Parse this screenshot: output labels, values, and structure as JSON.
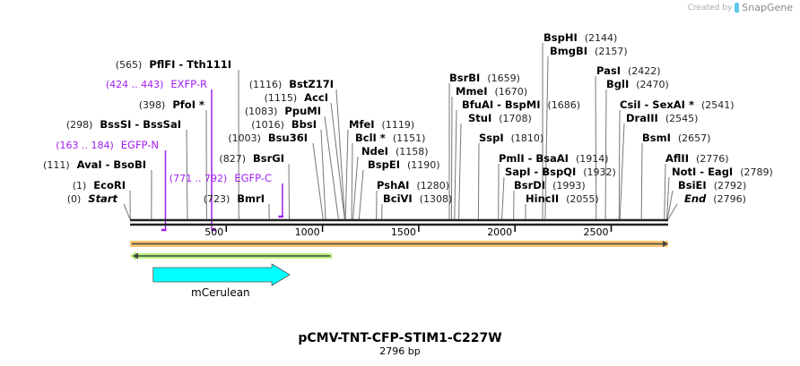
{
  "credit": {
    "prefix": "Created by",
    "brand": "SnapGene"
  },
  "sequence": {
    "name": "pCMV-TNT-CFP-STIM1-C227W",
    "length_label": "2796 bp",
    "length": 2796
  },
  "ruler": {
    "ticks": [
      "500",
      "1000",
      "1500",
      "2000",
      "2500"
    ]
  },
  "sites": [
    {
      "name": "Start",
      "pos": "(0)",
      "bp": 0,
      "italic": true
    },
    {
      "name": "EcoRI",
      "pos": "(1)",
      "bp": 1
    },
    {
      "name": "AvaI  - BsoBI",
      "pos": "(111)",
      "bp": 111
    },
    {
      "name": "BssSI  - BssSaI",
      "pos": "(298)",
      "bp": 298
    },
    {
      "name": "PfoI *",
      "pos": "(398)",
      "bp": 398
    },
    {
      "name": "PflFI  - Tth111I",
      "pos": "(565)",
      "bp": 565
    },
    {
      "name": "BmrI",
      "pos": "(723)",
      "bp": 723
    },
    {
      "name": "BsrGI",
      "pos": "(827)",
      "bp": 827
    },
    {
      "name": "Bsu36I",
      "pos": "(1003)",
      "bp": 1003
    },
    {
      "name": "BbsI",
      "pos": "(1016)",
      "bp": 1016
    },
    {
      "name": "PpuMI",
      "pos": "(1083)",
      "bp": 1083
    },
    {
      "name": "AccI",
      "pos": "(1115)",
      "bp": 1115
    },
    {
      "name": "BstZ17I",
      "pos": "(1116)",
      "bp": 1116
    },
    {
      "name": "MfeI",
      "pos": "(1119)",
      "bp": 1119
    },
    {
      "name": "BclI *",
      "pos": "(1151)",
      "bp": 1151
    },
    {
      "name": "NdeI",
      "pos": "(1158)",
      "bp": 1158
    },
    {
      "name": "BspEI",
      "pos": "(1190)",
      "bp": 1190
    },
    {
      "name": "PshAI",
      "pos": "(1280)",
      "bp": 1280
    },
    {
      "name": "BciVI",
      "pos": "(1308)",
      "bp": 1308
    },
    {
      "name": "BsrBI",
      "pos": "(1659)",
      "bp": 1659
    },
    {
      "name": "MmeI",
      "pos": "(1670)",
      "bp": 1670
    },
    {
      "name": "BfuAI  - BspMI",
      "pos": "(1686)",
      "bp": 1686
    },
    {
      "name": "StuI",
      "pos": "(1708)",
      "bp": 1708
    },
    {
      "name": "SspI",
      "pos": "(1810)",
      "bp": 1810
    },
    {
      "name": "PmlI  - BsaAI",
      "pos": "(1914)",
      "bp": 1914
    },
    {
      "name": "SapI  - BspQI",
      "pos": "(1932)",
      "bp": 1932
    },
    {
      "name": "BsrDI",
      "pos": "(1993)",
      "bp": 1993
    },
    {
      "name": "HincII",
      "pos": "(2055)",
      "bp": 2055
    },
    {
      "name": "BspHI",
      "pos": "(2144)",
      "bp": 2144
    },
    {
      "name": "BmgBI",
      "pos": "(2157)",
      "bp": 2157
    },
    {
      "name": "PasI",
      "pos": "(2422)",
      "bp": 2422
    },
    {
      "name": "BglI",
      "pos": "(2470)",
      "bp": 2470
    },
    {
      "name": "CsiI  - SexAI *",
      "pos": "(2541)",
      "bp": 2541
    },
    {
      "name": "DraIII",
      "pos": "(2545)",
      "bp": 2545
    },
    {
      "name": "BsmI",
      "pos": "(2657)",
      "bp": 2657
    },
    {
      "name": "AflII",
      "pos": "(2776)",
      "bp": 2776
    },
    {
      "name": "NotI  - EagI",
      "pos": "(2789)",
      "bp": 2789
    },
    {
      "name": "BsiEI",
      "pos": "(2792)",
      "bp": 2792
    },
    {
      "name": "End",
      "pos": "(2796)",
      "bp": 2796,
      "italic": true
    }
  ],
  "primers": [
    {
      "name": "EGFP-N",
      "pos": "(163 .. 184)",
      "start": 163,
      "end": 184,
      "direction": "forward"
    },
    {
      "name": "EXFP-R",
      "pos": "(424 .. 443)",
      "start": 424,
      "end": 443,
      "direction": "reverse"
    },
    {
      "name": "EGFP-C",
      "pos": "(771 .. 792)",
      "start": 771,
      "end": 792,
      "direction": "forward"
    }
  ],
  "features": [
    {
      "name": "mCerulean",
      "start": 120,
      "end": 830,
      "direction": "forward",
      "color": "#00ffff"
    },
    {
      "name": "",
      "start": 0,
      "end": 2796,
      "direction": "forward",
      "color": "#f5c56e"
    },
    {
      "name": "",
      "start": 0,
      "end": 1050,
      "direction": "reverse",
      "color": "#b7f27a"
    }
  ],
  "colors": {
    "primer": "#a020f0",
    "backbone": "#222222"
  }
}
